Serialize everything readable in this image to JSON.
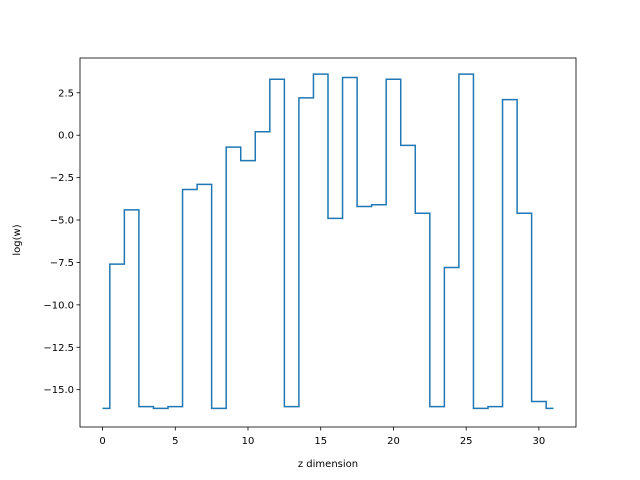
{
  "chart_data": {
    "type": "line",
    "drawstyle": "steps-mid",
    "title": "",
    "xlabel": "z dimension",
    "ylabel": "log(w)",
    "xlim": [
      -1.55,
      32.55
    ],
    "ylim": [
      -17.2,
      4.55
    ],
    "xticks": [
      0,
      5,
      10,
      15,
      20,
      25,
      30
    ],
    "yticks": [
      -15.0,
      -12.5,
      -10.0,
      -7.5,
      -5.0,
      -2.5,
      0.0,
      2.5
    ],
    "grid": false,
    "legend": "none",
    "line_color": "#1f77b4",
    "series": [
      {
        "x": [
          0,
          1,
          2,
          3,
          4,
          5,
          6,
          7,
          8,
          9,
          10,
          11,
          12,
          13,
          14,
          15,
          16,
          17,
          18,
          19,
          20,
          21,
          22,
          23,
          24,
          25,
          26,
          27,
          28,
          29,
          30,
          31
        ],
        "values": [
          -16.1,
          -7.6,
          -4.4,
          -16.0,
          -16.1,
          -16.0,
          -3.2,
          -2.9,
          -16.1,
          -0.7,
          -1.5,
          0.2,
          3.3,
          -16.0,
          2.2,
          3.6,
          -4.9,
          3.4,
          -4.2,
          -4.1,
          3.3,
          -0.6,
          -4.6,
          -16.0,
          -7.8,
          3.6,
          -16.1,
          -16.0,
          2.1,
          -4.6,
          -15.7,
          -16.1
        ]
      }
    ]
  }
}
